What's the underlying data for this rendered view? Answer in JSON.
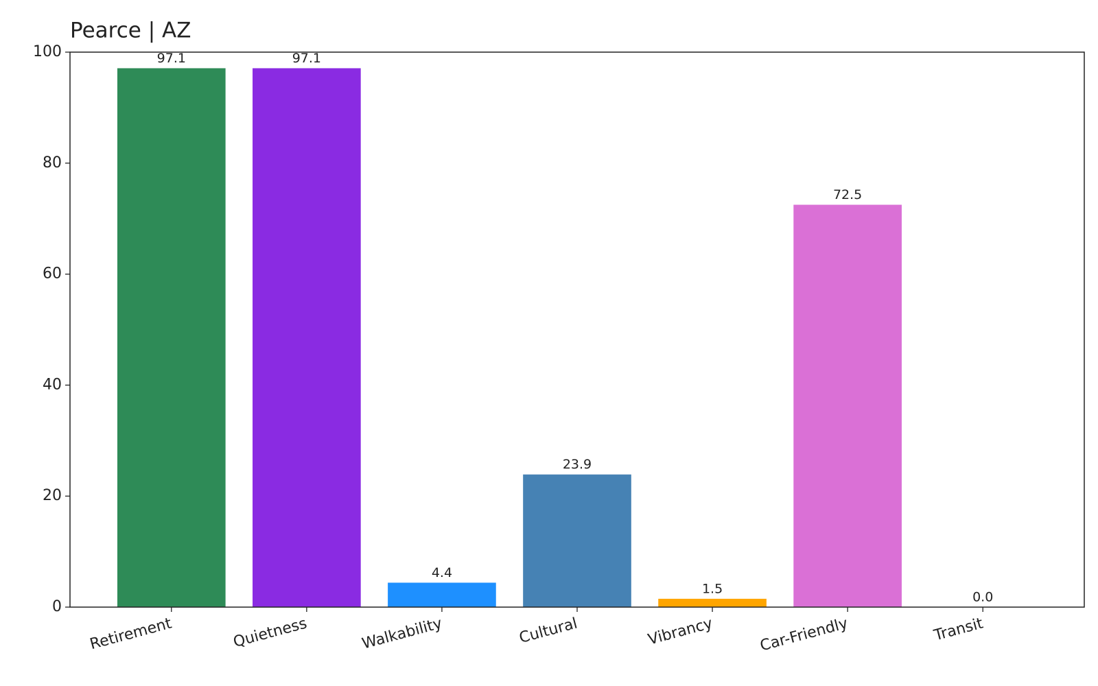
{
  "chart_data": {
    "type": "bar",
    "title": "Pearce | AZ",
    "categories": [
      "Retirement",
      "Quietness",
      "Walkability",
      "Cultural",
      "Vibrancy",
      "Car-Friendly",
      "Transit"
    ],
    "values": [
      97.1,
      97.1,
      4.4,
      23.9,
      1.5,
      72.5,
      0
    ],
    "value_labels": [
      "97.1",
      "97.1",
      "4.4",
      "23.9",
      "1.5",
      "72.5",
      "0.0"
    ],
    "colors": [
      "#2e8b57",
      "#8a2be2",
      "#1e90ff",
      "#4682b4",
      "#ffa500",
      "#da70d6",
      "#708090"
    ],
    "ylim": [
      0,
      100
    ],
    "yticks": [
      0,
      20,
      40,
      60,
      80,
      100
    ],
    "grid": false
  }
}
